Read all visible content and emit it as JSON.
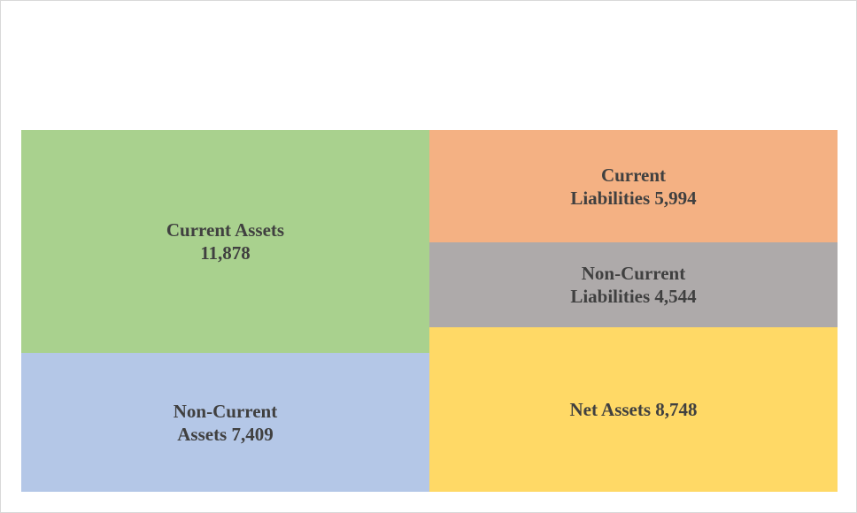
{
  "chart_data": {
    "type": "treemap",
    "title": "",
    "groups": [
      {
        "side": "assets",
        "items": [
          {
            "name": "Current Assets",
            "value": 11878,
            "line1": "Current Assets",
            "line2": "11,878",
            "color": "#a9d18e"
          },
          {
            "name": "Non-Current Assets",
            "value": 7409,
            "line1": "Non-Current",
            "line2": "Assets 7,409",
            "color": "#b4c7e7"
          }
        ]
      },
      {
        "side": "liabilities-and-net-assets",
        "items": [
          {
            "name": "Current Liabilities",
            "value": 5994,
            "line1": "Current",
            "line2": "Liabilities 5,994",
            "color": "#f4b183"
          },
          {
            "name": "Non-Current Liabilities",
            "value": 4544,
            "line1": "Non-Current",
            "line2": "Liabilities 4,544",
            "color": "#aeaaaa"
          },
          {
            "name": "Net Assets",
            "value": 8748,
            "line1": "Net Assets 8,748",
            "line2": "",
            "color": "#ffd966"
          }
        ]
      }
    ]
  }
}
